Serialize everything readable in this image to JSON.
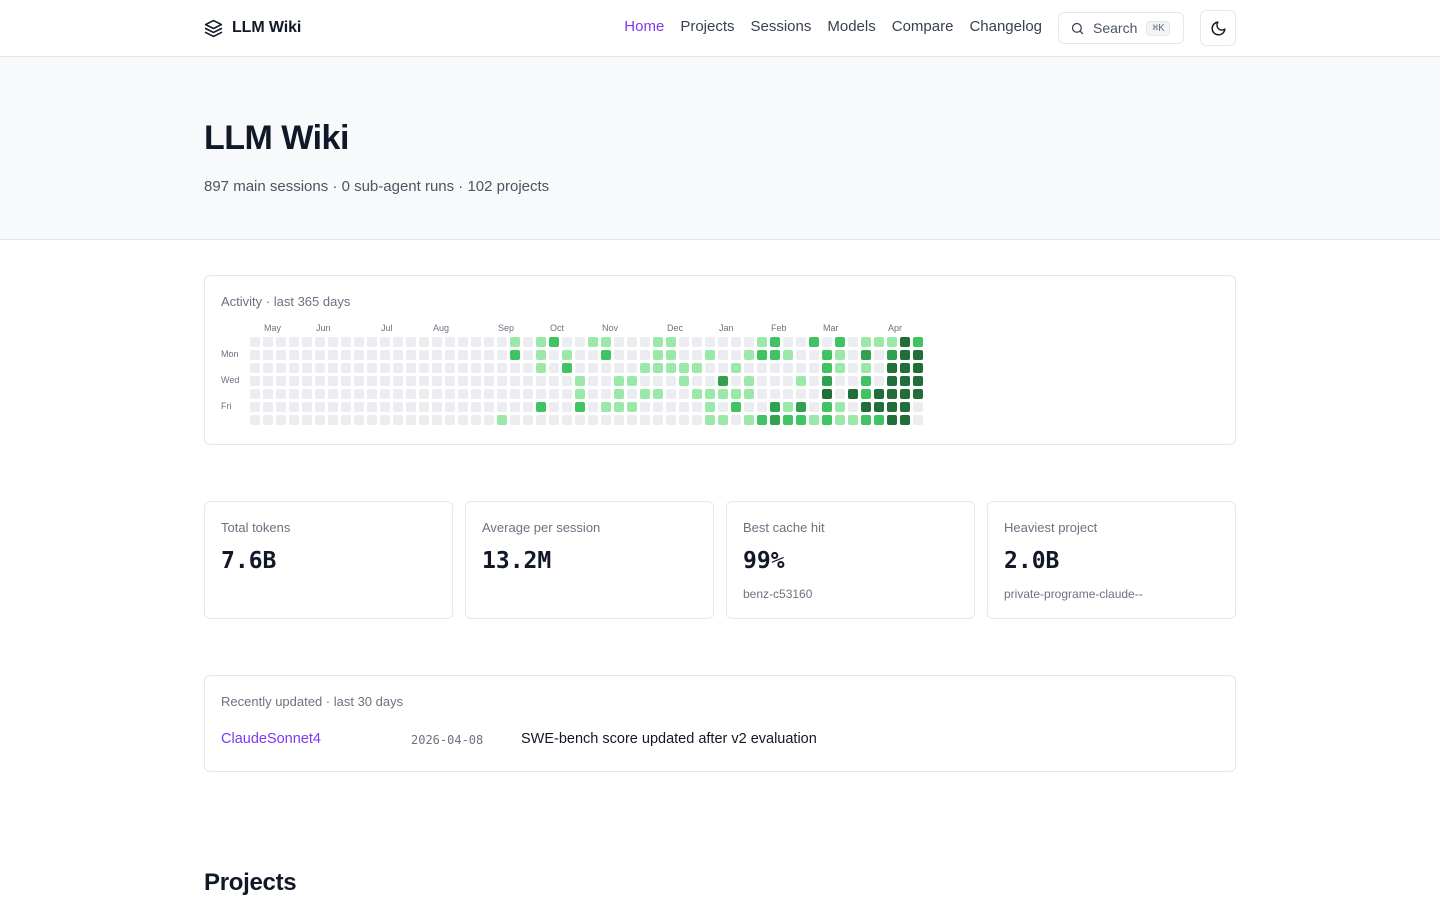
{
  "brand": {
    "name": "LLM Wiki",
    "icon": "layers-icon"
  },
  "nav": {
    "items": [
      {
        "label": "Home",
        "active": true
      },
      {
        "label": "Projects",
        "active": false
      },
      {
        "label": "Sessions",
        "active": false
      },
      {
        "label": "Models",
        "active": false
      },
      {
        "label": "Compare",
        "active": false
      },
      {
        "label": "Changelog",
        "active": false
      }
    ],
    "search_label": "Search",
    "search_shortcut": "⌘K",
    "search_icon": "search-icon",
    "theme_icon": "moon-icon"
  },
  "hero": {
    "title": "LLM Wiki",
    "subtitle": "897 main sessions · 0 sub-agent runs · 102 projects"
  },
  "activity": {
    "label": "Activity · last 365 days",
    "months": [
      {
        "label": "May",
        "week": 1
      },
      {
        "label": "Jun",
        "week": 5
      },
      {
        "label": "Jul",
        "week": 10
      },
      {
        "label": "Aug",
        "week": 14
      },
      {
        "label": "Sep",
        "week": 19
      },
      {
        "label": "Oct",
        "week": 23
      },
      {
        "label": "Nov",
        "week": 27
      },
      {
        "label": "Dec",
        "week": 32
      },
      {
        "label": "Jan",
        "week": 36
      },
      {
        "label": "Feb",
        "week": 40
      },
      {
        "label": "Mar",
        "week": 44
      },
      {
        "label": "Apr",
        "week": 49
      }
    ],
    "day_labels": [
      {
        "label": "Mon",
        "day": 1
      },
      {
        "label": "Wed",
        "day": 3
      },
      {
        "label": "Fri",
        "day": 5
      }
    ],
    "level_colors": [
      "#ebedf0",
      "#9be9a8",
      "#40c463",
      "#30a14e",
      "#216e39"
    ],
    "levels": [
      "00000000000000000000111100000000000000000000000000000",
      "00000000000000000000000000000000000000000000000000000",
      "00000000000000000000000000000000000000000000000000000",
      "00000000000000000000000000000000000000000000000000000",
      "00000000000000000000000000000000000000000000000000000",
      "00000000000000000000000000000000000000000000000000000",
      "00000000000000000000000000000000000000000000000000000",
      "00000000000000000000000000000000000000000000000000000",
      "00000000000000000000000000000000000000000000000000000",
      "00000000000000000000000000000000000000000000000000000",
      "00000000000000000000000000000000000000000000000000000",
      "00000000000000000000000000000000000000000000000000000",
      "00000000000000000000000000000000000000000000000000000",
      "00000000000000000000000000000000000000000000000000000",
      "00000000000000000000000000000000000000000000000000000",
      "00000000000000000000000000000000000000000000000000000",
      "00000000000000000000000000000000000000000000000000000",
      "00000000000000000000000000000000000000000000000000000",
      "00000000000000000000000000000000000000000000000000000",
      "00000000000000000000000000000000000000000000000000000"
    ],
    "weeks": [
      [
        0,
        0,
        0,
        0,
        0,
        0,
        0
      ],
      [
        0,
        0,
        0,
        0,
        0,
        0,
        0
      ],
      [
        0,
        0,
        0,
        0,
        0,
        0,
        0
      ],
      [
        0,
        0,
        0,
        0,
        0,
        0,
        0
      ],
      [
        0,
        0,
        0,
        0,
        0,
        0,
        0
      ],
      [
        0,
        0,
        0,
        0,
        0,
        0,
        0
      ],
      [
        0,
        0,
        0,
        0,
        0,
        0,
        0
      ],
      [
        0,
        0,
        0,
        0,
        0,
        0,
        0
      ],
      [
        0,
        0,
        0,
        0,
        0,
        0,
        0
      ],
      [
        0,
        0,
        0,
        0,
        0,
        0,
        0
      ],
      [
        0,
        0,
        0,
        0,
        0,
        0,
        0
      ],
      [
        0,
        0,
        0,
        0,
        0,
        0,
        0
      ],
      [
        0,
        0,
        0,
        0,
        0,
        0,
        0
      ],
      [
        0,
        0,
        0,
        0,
        0,
        0,
        0
      ],
      [
        0,
        0,
        0,
        0,
        0,
        0,
        0
      ],
      [
        0,
        0,
        0,
        0,
        0,
        0,
        0
      ],
      [
        0,
        0,
        0,
        0,
        0,
        0,
        0
      ],
      [
        0,
        0,
        0,
        0,
        0,
        0,
        0
      ],
      [
        0,
        0,
        0,
        0,
        0,
        0,
        0
      ],
      [
        0,
        0,
        0,
        0,
        0,
        0,
        1
      ],
      [
        1,
        2,
        0,
        0,
        0,
        0,
        0
      ],
      [
        0,
        0,
        0,
        0,
        0,
        0,
        0
      ],
      [
        1,
        1,
        1,
        0,
        0,
        2,
        0
      ],
      [
        2,
        0,
        0,
        0,
        0,
        0,
        0
      ],
      [
        0,
        1,
        2,
        0,
        0,
        0,
        0
      ],
      [
        0,
        0,
        0,
        1,
        1,
        2,
        0
      ],
      [
        1,
        0,
        0,
        0,
        0,
        0,
        0
      ],
      [
        1,
        2,
        0,
        0,
        0,
        1,
        0
      ],
      [
        0,
        0,
        0,
        1,
        1,
        1,
        0
      ],
      [
        0,
        0,
        0,
        1,
        0,
        1,
        0
      ],
      [
        0,
        0,
        1,
        0,
        1,
        0,
        0
      ],
      [
        1,
        1,
        1,
        0,
        1,
        0,
        0
      ],
      [
        1,
        1,
        1,
        0,
        0,
        0,
        0
      ],
      [
        0,
        0,
        1,
        1,
        0,
        0,
        0
      ],
      [
        0,
        0,
        1,
        0,
        1,
        0,
        0
      ],
      [
        0,
        1,
        0,
        0,
        1,
        1,
        1
      ],
      [
        0,
        0,
        0,
        3,
        1,
        0,
        1
      ],
      [
        0,
        0,
        1,
        0,
        1,
        2,
        0
      ],
      [
        0,
        1,
        0,
        1,
        1,
        0,
        1
      ],
      [
        1,
        2,
        0,
        0,
        0,
        0,
        2
      ],
      [
        2,
        2,
        0,
        0,
        0,
        3,
        3
      ],
      [
        0,
        1,
        0,
        0,
        0,
        1,
        2
      ],
      [
        0,
        0,
        0,
        1,
        0,
        3,
        2
      ],
      [
        2,
        0,
        0,
        0,
        0,
        0,
        1
      ],
      [
        0,
        2,
        2,
        3,
        4,
        2,
        2
      ],
      [
        2,
        1,
        1,
        0,
        0,
        1,
        1
      ],
      [
        0,
        0,
        0,
        0,
        4,
        0,
        1
      ],
      [
        1,
        3,
        1,
        2,
        2,
        4,
        2
      ],
      [
        1,
        0,
        0,
        0,
        4,
        4,
        2
      ],
      [
        1,
        3,
        4,
        4,
        4,
        4,
        4
      ],
      [
        4,
        4,
        4,
        4,
        4,
        4,
        4
      ],
      [
        2,
        4,
        4,
        4,
        4,
        0,
        0
      ]
    ]
  },
  "stats": [
    {
      "label": "Total tokens",
      "value": "7.6B",
      "note": ""
    },
    {
      "label": "Average per session",
      "value": "13.2M",
      "note": ""
    },
    {
      "label": "Best cache hit",
      "value": "99%",
      "note": "benz-c53160"
    },
    {
      "label": "Heaviest project",
      "value": "2.0B",
      "note": "private-programe-claude--"
    }
  ],
  "recent": {
    "label": "Recently updated · last 30 days",
    "items": [
      {
        "model": "ClaudeSonnet4",
        "date": "2026-04-08",
        "message": "SWE-bench score updated after v2 evaluation"
      }
    ]
  },
  "projects": {
    "heading": "Projects"
  }
}
